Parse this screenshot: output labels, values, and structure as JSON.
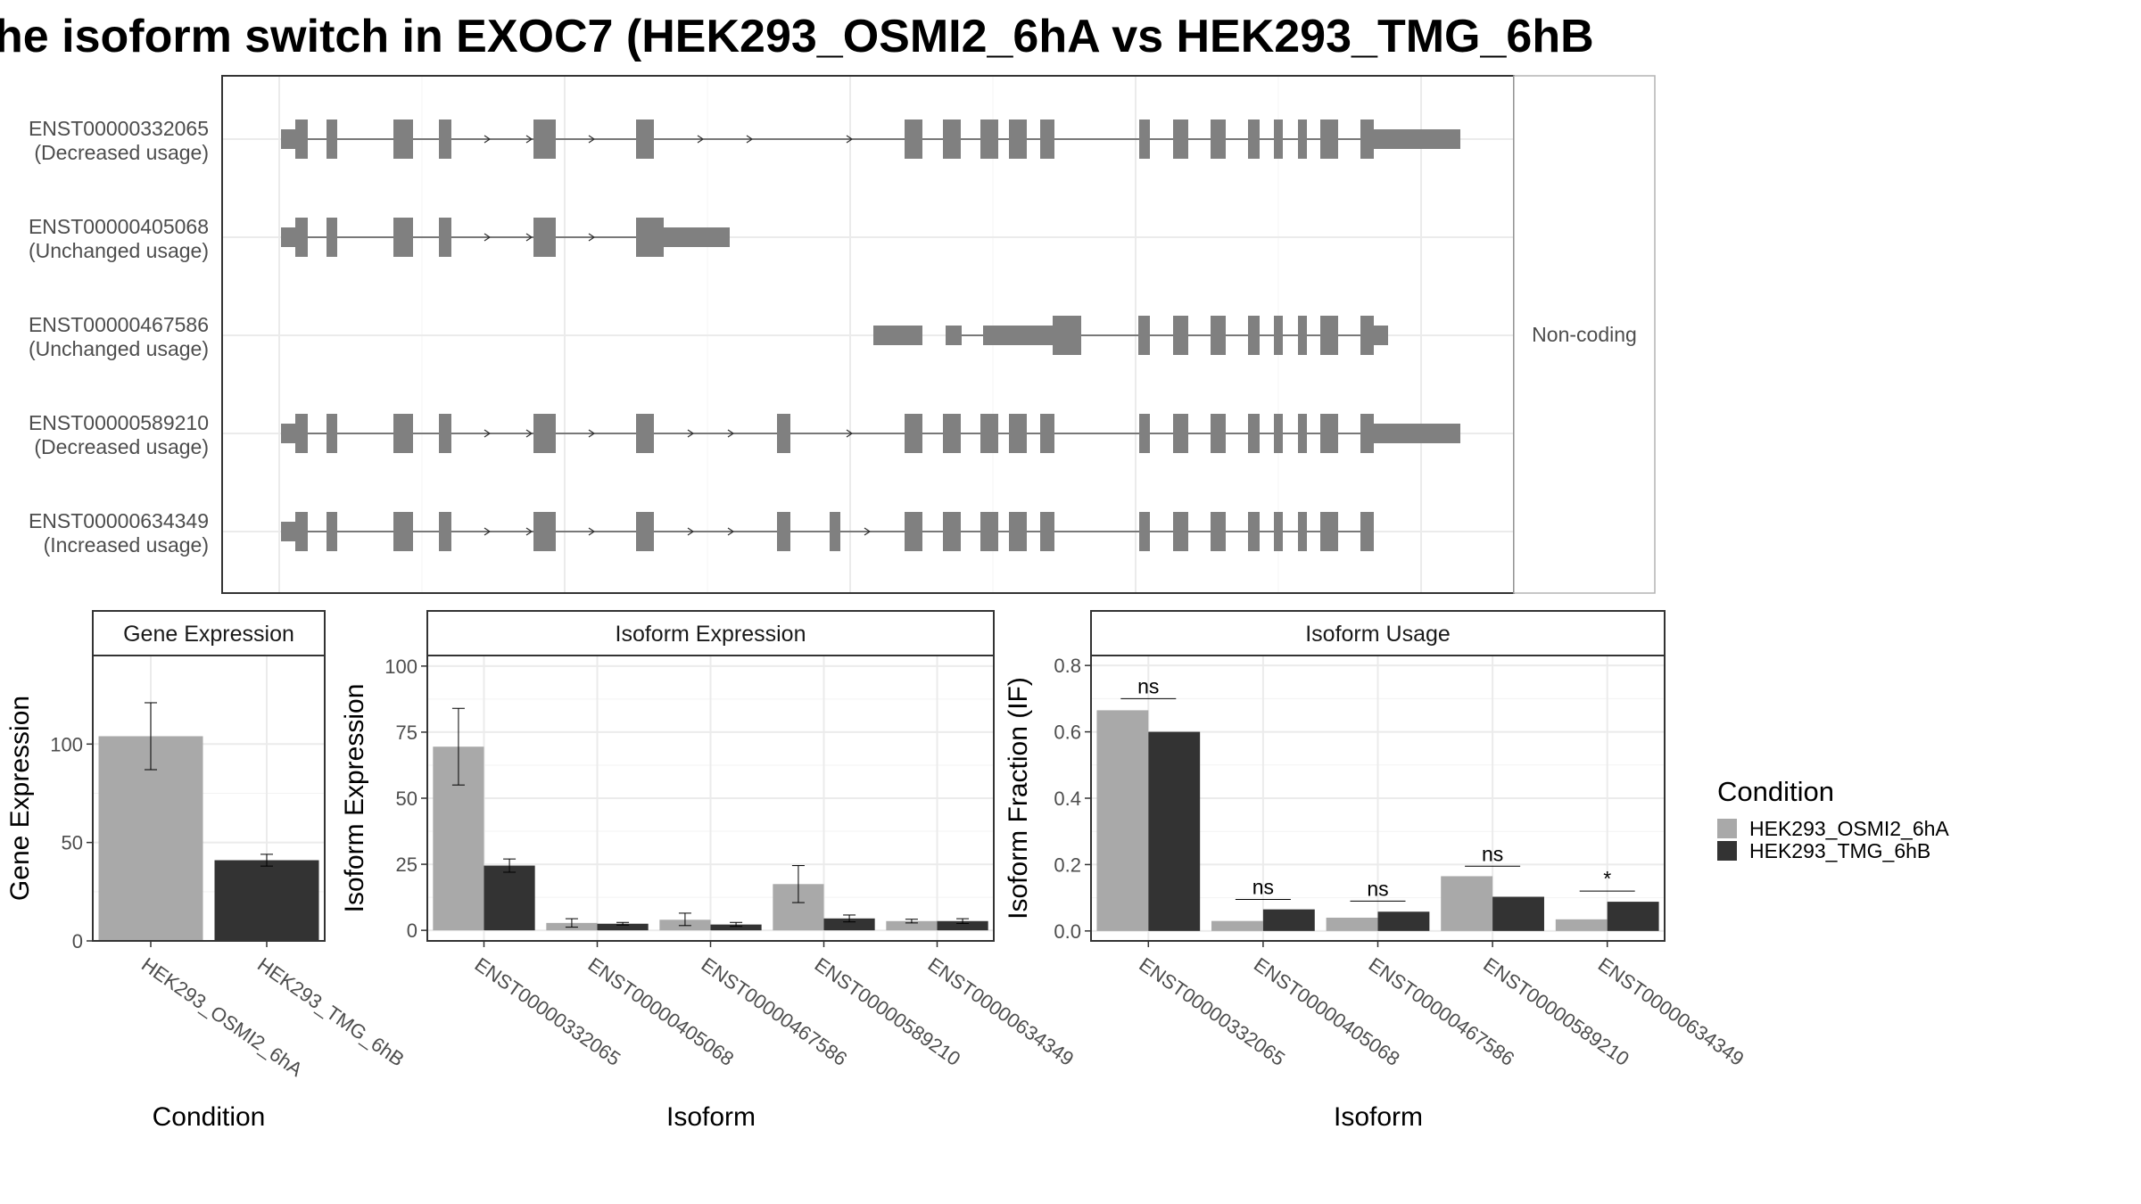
{
  "title": "he isoform switch in EXOC7 (HEK293_OSMI2_6hA vs HEK293_TMG_6hB",
  "colors": {
    "HEK293_OSMI2_6hA": "#a9a9a9",
    "HEK293_TMG_6hB": "#333333",
    "exon": "#808080"
  },
  "transcripts": {
    "strip_label": "Non-coding",
    "items": [
      {
        "id": "ENST00000332065",
        "usage": "(Decreased usage)"
      },
      {
        "id": "ENST00000405068",
        "usage": "(Unchanged usage)"
      },
      {
        "id": "ENST00000467586",
        "usage": "(Unchanged usage)"
      },
      {
        "id": "ENST00000589210",
        "usage": "(Decreased usage)"
      },
      {
        "id": "ENST00000634349",
        "usage": "(Increased usage)"
      }
    ]
  },
  "legend": {
    "title": "Condition",
    "entries": [
      "HEK293_OSMI2_6hA",
      "HEK293_TMG_6hB"
    ]
  },
  "chart_data": [
    {
      "type": "bar",
      "title": "Gene Expression",
      "xlabel": "Condition",
      "ylabel": "Gene Expression",
      "categories": [
        "HEK293_OSMI2_6hA",
        "HEK293_TMG_6hB"
      ],
      "values": [
        104,
        41
      ],
      "errors": [
        [
          87,
          121
        ],
        [
          38,
          44
        ]
      ],
      "ylim": [
        0,
        145
      ],
      "yticks": [
        0,
        50,
        100
      ]
    },
    {
      "type": "bar",
      "title": "Isoform Expression",
      "xlabel": "Isoform",
      "ylabel": "Isoform Expression",
      "categories": [
        "ENST00000332065",
        "ENST00000405068",
        "ENST00000467586",
        "ENST00000589210",
        "ENST00000634349"
      ],
      "series": [
        {
          "name": "HEK293_OSMI2_6hA",
          "values": [
            69.5,
            2.8,
            4.0,
            17.5,
            3.5
          ],
          "errors": [
            [
              55,
              84
            ],
            [
              1.2,
              4.4
            ],
            [
              1.8,
              6.5
            ],
            [
              10.5,
              24.5
            ],
            [
              2.8,
              4.2
            ]
          ]
        },
        {
          "name": "HEK293_TMG_6hB",
          "values": [
            24.5,
            2.5,
            2.2,
            4.5,
            3.5
          ],
          "errors": [
            [
              22,
              27
            ],
            [
              2.0,
              3.0
            ],
            [
              1.5,
              3.0
            ],
            [
              3.2,
              5.8
            ],
            [
              2.6,
              4.4
            ]
          ]
        }
      ],
      "ylim": [
        -4,
        104
      ],
      "yticks": [
        0,
        25,
        50,
        75,
        100
      ]
    },
    {
      "type": "bar",
      "title": "Isoform Usage",
      "xlabel": "Isoform",
      "ylabel": "Isoform Fraction (IF)",
      "categories": [
        "ENST00000332065",
        "ENST00000405068",
        "ENST00000467586",
        "ENST00000589210",
        "ENST00000634349"
      ],
      "series": [
        {
          "name": "HEK293_OSMI2_6hA",
          "values": [
            0.665,
            0.03,
            0.04,
            0.165,
            0.035
          ]
        },
        {
          "name": "HEK293_TMG_6hB",
          "values": [
            0.6,
            0.065,
            0.058,
            0.103,
            0.088
          ]
        }
      ],
      "significance": [
        "ns",
        "ns",
        "ns",
        "ns",
        "*"
      ],
      "sig_levels": [
        0.7,
        0.095,
        0.09,
        0.195,
        0.12
      ],
      "ylim": [
        -0.03,
        0.83
      ],
      "yticks": [
        0.0,
        0.2,
        0.4,
        0.6,
        0.8
      ],
      "ytick_labels": [
        "0.0",
        "0.2",
        "0.4",
        "0.6",
        "0.8"
      ]
    }
  ]
}
